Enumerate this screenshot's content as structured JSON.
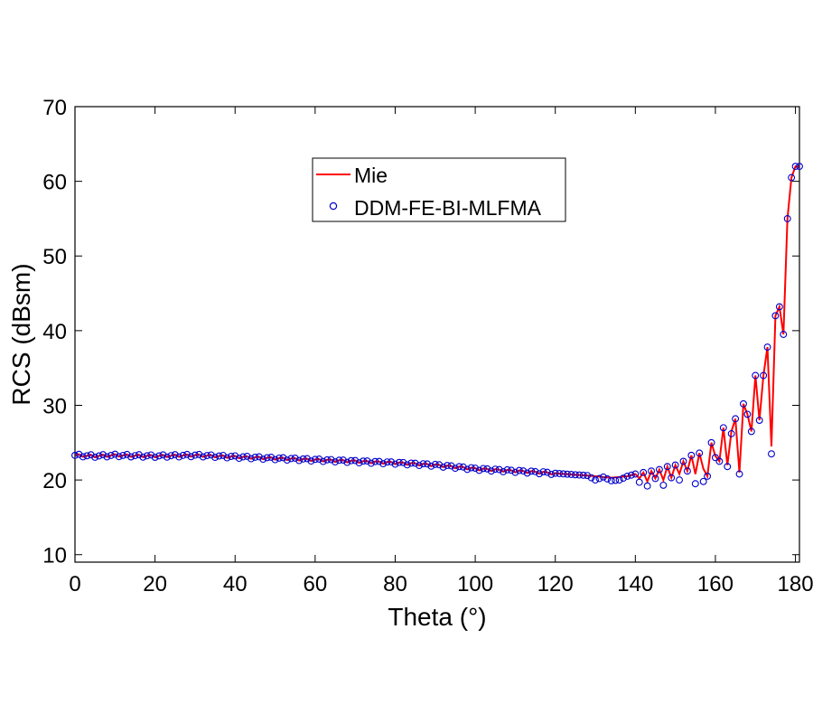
{
  "chart_data": {
    "type": "line",
    "title": "",
    "xlabel": "Theta (°)",
    "ylabel": "RCS (dBsm)",
    "xlim": [
      0,
      181
    ],
    "ylim": [
      9,
      70
    ],
    "xticks": [
      0,
      20,
      40,
      60,
      80,
      100,
      120,
      140,
      160,
      180
    ],
    "yticks": [
      10,
      20,
      30,
      40,
      50,
      60,
      70
    ],
    "grid": false,
    "legend_position": "top-center",
    "colors": {
      "mie": "#ff0000",
      "ddm": "#0000cc"
    },
    "series": [
      {
        "name": "Mie",
        "style": "line",
        "x": [
          0,
          5,
          10,
          20,
          30,
          40,
          50,
          60,
          70,
          80,
          90,
          100,
          110,
          120,
          125,
          128,
          130,
          132,
          134,
          136,
          138,
          140,
          141,
          142,
          143,
          144,
          145,
          146,
          147,
          148,
          149,
          150,
          151,
          152,
          153,
          154,
          155,
          156,
          157,
          158,
          159,
          160,
          161,
          162,
          163,
          164,
          165,
          166,
          167,
          168,
          169,
          170,
          171,
          172,
          173,
          174,
          175,
          176,
          177,
          178,
          179,
          180,
          181
        ],
        "y": [
          23.3,
          23.2,
          23.3,
          23.2,
          23.3,
          23.1,
          22.9,
          22.7,
          22.5,
          22.3,
          22.0,
          21.5,
          21.2,
          20.9,
          20.7,
          20.6,
          20.5,
          20.4,
          20.3,
          20.4,
          20.5,
          20.8,
          20.2,
          21.0,
          19.8,
          21.2,
          20.2,
          21.4,
          20.0,
          21.8,
          20.3,
          22.0,
          20.8,
          22.5,
          21.2,
          23.3,
          20.8,
          23.6,
          21.5,
          20.5,
          25.0,
          23.2,
          22.5,
          27.0,
          22.0,
          26.5,
          28.2,
          21.0,
          30.2,
          28.8,
          26.5,
          34.0,
          28.0,
          34.0,
          37.8,
          24.5,
          42.0,
          43.2,
          39.5,
          55.0,
          60.5,
          62.0,
          62.0
        ]
      },
      {
        "name": "DDM-FE-BI-MLFMA",
        "style": "markers",
        "x": [
          0,
          5,
          10,
          20,
          30,
          40,
          50,
          60,
          70,
          80,
          90,
          100,
          110,
          120,
          125,
          128,
          130,
          132,
          134,
          136,
          138,
          140,
          141,
          142,
          143,
          144,
          145,
          146,
          147,
          148,
          149,
          150,
          151,
          152,
          153,
          154,
          155,
          156,
          157,
          158,
          159,
          160,
          161,
          162,
          163,
          164,
          165,
          166,
          167,
          168,
          169,
          170,
          171,
          172,
          173,
          174,
          175,
          176,
          177,
          178,
          179,
          180,
          181
        ],
        "y": [
          23.3,
          23.2,
          23.3,
          23.2,
          23.3,
          23.1,
          22.9,
          22.7,
          22.5,
          22.3,
          22.0,
          21.5,
          21.2,
          20.9,
          20.7,
          20.6,
          20.0,
          20.4,
          19.9,
          20.0,
          20.5,
          20.8,
          19.7,
          21.0,
          19.2,
          21.2,
          20.2,
          21.4,
          19.3,
          21.8,
          20.3,
          22.0,
          20.0,
          22.5,
          21.2,
          23.3,
          19.5,
          23.6,
          19.8,
          20.5,
          25.0,
          23.0,
          22.5,
          27.0,
          21.8,
          26.2,
          28.2,
          20.8,
          30.2,
          28.8,
          26.5,
          34.0,
          28.0,
          34.0,
          37.8,
          23.5,
          42.0,
          43.2,
          39.5,
          55.0,
          60.5,
          62.0,
          62.0
        ]
      }
    ]
  }
}
